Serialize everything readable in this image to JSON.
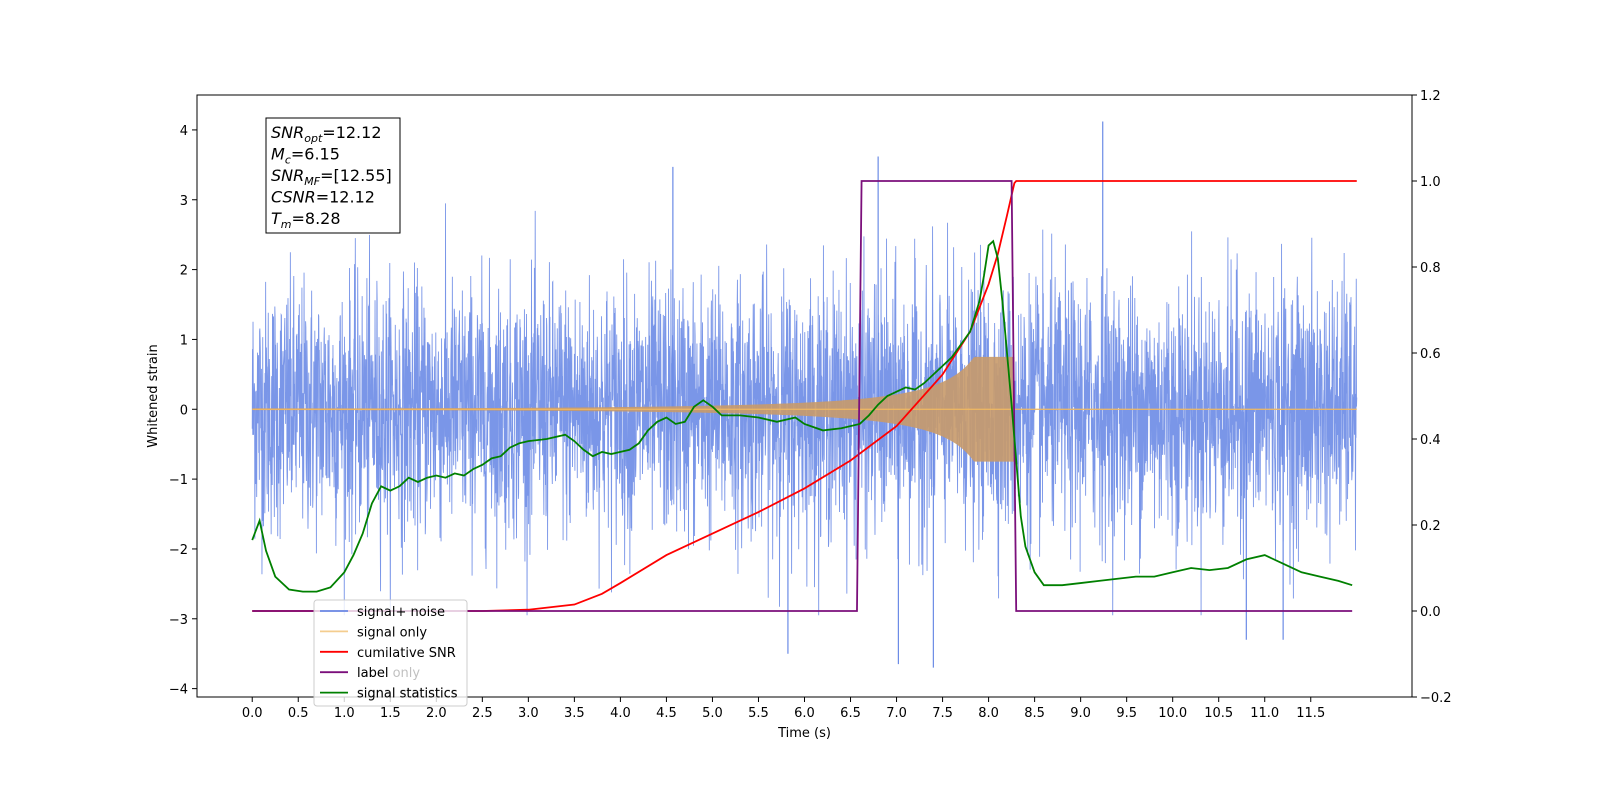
{
  "chart_data": {
    "type": "line",
    "xlabel": "Time (s)",
    "ylabel": "Whitened strain",
    "xlim": [
      -0.6,
      12.6
    ],
    "ylim": [
      -4.12,
      4.5
    ],
    "ylim_right": [
      -0.2,
      1.2
    ],
    "x_ticks": [
      0.0,
      0.5,
      1.0,
      1.5,
      2.0,
      2.5,
      3.0,
      3.5,
      4.0,
      4.5,
      5.0,
      5.5,
      6.0,
      6.5,
      7.0,
      7.5,
      8.0,
      8.5,
      9.0,
      9.5,
      10.0,
      10.5,
      11.0,
      11.5
    ],
    "x_tick_labels": [
      "0.0",
      "0.5",
      "1.0",
      "1.5",
      "2.0",
      "2.5",
      "3.0",
      "3.5",
      "4.0",
      "4.5",
      "5.0",
      "5.5",
      "6.0",
      "6.5",
      "7.0",
      "7.5",
      "8.0",
      "8.5",
      "9.0",
      "9.5",
      "10.0",
      "10.5",
      "11.0",
      "11.5"
    ],
    "y_ticks": [
      -4,
      -3,
      -2,
      -1,
      0,
      1,
      2,
      3,
      4
    ],
    "y_tick_labels": [
      "−4",
      "−3",
      "−2",
      "−1",
      "0",
      "1",
      "2",
      "3",
      "4"
    ],
    "y_right_ticks": [
      -0.2,
      0.0,
      0.2,
      0.4,
      0.6,
      0.8,
      1.0,
      1.2
    ],
    "y_right_tick_labels": [
      "−0.2",
      "0.0",
      "0.2",
      "0.4",
      "0.6",
      "0.8",
      "1.0",
      "1.2"
    ],
    "annotation": {
      "lines": [
        {
          "base": "SNR",
          "sub": "opt",
          "value": "=12.12"
        },
        {
          "base": "M",
          "sub": "c",
          "value": "=6.15"
        },
        {
          "base": "SNR",
          "sub": "MF",
          "value": "=[12.55]"
        },
        {
          "base": "CSNR",
          "sub": "",
          "value": "=12.12"
        },
        {
          "base": "T",
          "sub": "m",
          "value": "=8.28"
        }
      ]
    },
    "legend": {
      "placement": "lower-left",
      "entries": [
        "signal+ noise",
        "signal only",
        "cumilative SNR",
        "label",
        "signal statistics"
      ],
      "hidden_text": [
        "label only",
        "signal statistics"
      ]
    },
    "series": [
      {
        "name": "signal+ noise",
        "axis": "left",
        "color": "#6b8be6",
        "description_values": {
          "x_start": 0.0,
          "x_end": 12.0,
          "noise_std": 0.9,
          "max_spike": 4.12,
          "min_spike": -3.7
        },
        "spikes": [
          [
            9.24,
            4.12
          ],
          [
            6.8,
            3.62
          ],
          [
            4.57,
            3.47
          ],
          [
            7.4,
            -3.7
          ],
          [
            7.02,
            -3.65
          ],
          [
            5.82,
            -3.5
          ],
          [
            10.8,
            -3.3
          ],
          [
            11.2,
            -3.3
          ]
        ]
      },
      {
        "name": "signal only",
        "axis": "left",
        "color": "#f0b860",
        "chirp": {
          "t_start": 0.0,
          "t_merger": 8.28,
          "peak_amplitude": 0.75
        }
      },
      {
        "name": "cumilative SNR",
        "axis": "right",
        "color": "#ff0000",
        "x": [
          0.0,
          2.5,
          3.0,
          3.5,
          3.8,
          4.0,
          4.5,
          5.0,
          5.5,
          6.0,
          6.5,
          7.0,
          7.5,
          7.8,
          8.0,
          8.1,
          8.2,
          8.28,
          8.3,
          12.0
        ],
        "y": [
          0.0,
          0.0,
          0.003,
          0.015,
          0.04,
          0.065,
          0.13,
          0.18,
          0.23,
          0.285,
          0.35,
          0.43,
          0.55,
          0.65,
          0.76,
          0.83,
          0.92,
          0.995,
          1.0,
          1.0
        ]
      },
      {
        "name": "label",
        "axis": "right",
        "color": "#7b0f7b",
        "x": [
          0.0,
          6.57,
          6.62,
          8.25,
          8.3,
          11.95
        ],
        "y": [
          0.0,
          0.0,
          1.0,
          1.0,
          0.0,
          0.0
        ]
      },
      {
        "name": "signal statistics",
        "axis": "right",
        "color": "#008000",
        "x": [
          0.0,
          0.08,
          0.15,
          0.25,
          0.4,
          0.55,
          0.7,
          0.85,
          1.0,
          1.1,
          1.2,
          1.3,
          1.4,
          1.5,
          1.6,
          1.7,
          1.8,
          1.9,
          2.0,
          2.1,
          2.2,
          2.3,
          2.4,
          2.5,
          2.6,
          2.7,
          2.8,
          2.9,
          3.0,
          3.2,
          3.4,
          3.5,
          3.6,
          3.7,
          3.8,
          3.9,
          4.0,
          4.1,
          4.2,
          4.3,
          4.4,
          4.5,
          4.6,
          4.7,
          4.8,
          4.9,
          5.0,
          5.1,
          5.3,
          5.5,
          5.7,
          5.9,
          6.0,
          6.2,
          6.4,
          6.6,
          6.7,
          6.8,
          6.9,
          7.0,
          7.1,
          7.2,
          7.3,
          7.4,
          7.5,
          7.6,
          7.7,
          7.8,
          7.9,
          7.95,
          8.0,
          8.05,
          8.1,
          8.15,
          8.2,
          8.25,
          8.3,
          8.35,
          8.4,
          8.5,
          8.6,
          8.8,
          9.0,
          9.2,
          9.4,
          9.6,
          9.8,
          10.0,
          10.2,
          10.4,
          10.6,
          10.8,
          11.0,
          11.2,
          11.4,
          11.6,
          11.8,
          11.95
        ],
        "y": [
          0.165,
          0.21,
          0.14,
          0.08,
          0.05,
          0.045,
          0.045,
          0.055,
          0.09,
          0.13,
          0.18,
          0.25,
          0.29,
          0.28,
          0.29,
          0.31,
          0.3,
          0.31,
          0.315,
          0.31,
          0.32,
          0.315,
          0.33,
          0.34,
          0.355,
          0.36,
          0.38,
          0.39,
          0.395,
          0.4,
          0.41,
          0.395,
          0.375,
          0.36,
          0.37,
          0.365,
          0.37,
          0.375,
          0.39,
          0.42,
          0.44,
          0.45,
          0.435,
          0.44,
          0.475,
          0.49,
          0.475,
          0.455,
          0.455,
          0.45,
          0.44,
          0.45,
          0.435,
          0.42,
          0.425,
          0.435,
          0.455,
          0.48,
          0.5,
          0.51,
          0.52,
          0.515,
          0.53,
          0.55,
          0.57,
          0.59,
          0.62,
          0.65,
          0.72,
          0.78,
          0.85,
          0.86,
          0.82,
          0.72,
          0.6,
          0.48,
          0.35,
          0.22,
          0.15,
          0.09,
          0.06,
          0.06,
          0.065,
          0.07,
          0.075,
          0.08,
          0.08,
          0.09,
          0.1,
          0.095,
          0.1,
          0.12,
          0.13,
          0.11,
          0.09,
          0.08,
          0.07,
          0.06
        ]
      }
    ]
  }
}
